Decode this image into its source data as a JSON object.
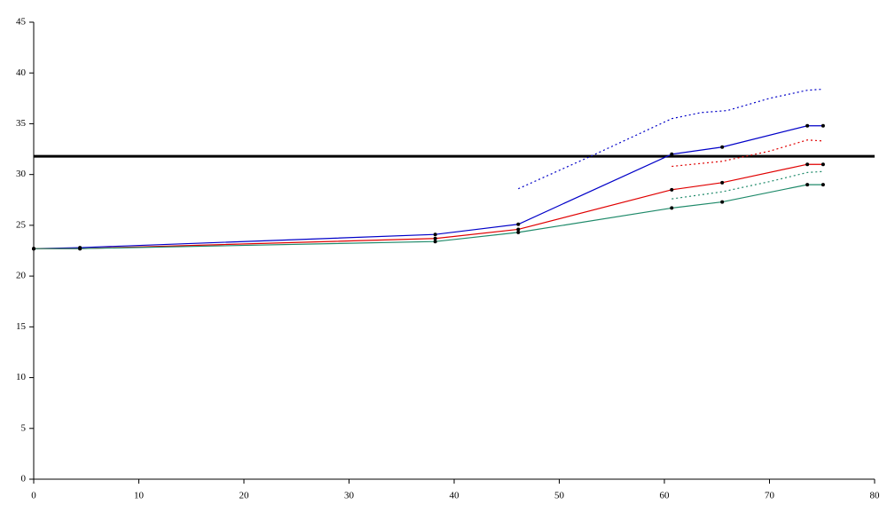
{
  "chart_data": {
    "type": "line",
    "xlim": [
      0,
      80
    ],
    "xticks": [
      0,
      10,
      20,
      30,
      40,
      50,
      60,
      70,
      80
    ],
    "ylim": [
      0,
      45
    ],
    "yticks": [
      0,
      5,
      10,
      15,
      20,
      25,
      30,
      35,
      40,
      45
    ],
    "grid": false,
    "reference_line": {
      "y": 31.8,
      "color": "#000000"
    },
    "series": [
      {
        "color": "#0000c8",
        "style": "solid",
        "markers": true,
        "x": [
          0,
          4.4,
          38.2,
          46.1,
          60.7,
          65.5,
          73.6,
          75.1
        ],
        "values": [
          22.7,
          22.8,
          24.1,
          25.1,
          32.0,
          32.7,
          34.8,
          34.8
        ]
      },
      {
        "color": "#e00000",
        "style": "solid",
        "markers": true,
        "x": [
          0,
          4.4,
          38.2,
          46.1,
          60.7,
          65.5,
          73.6,
          75.1
        ],
        "values": [
          22.7,
          22.7,
          23.7,
          24.6,
          28.5,
          29.2,
          31.0,
          31.0
        ]
      },
      {
        "color": "#1f8a6a",
        "style": "solid",
        "markers": true,
        "x": [
          0,
          4.4,
          38.2,
          46.1,
          60.7,
          65.5,
          73.6,
          75.1
        ],
        "values": [
          22.7,
          22.7,
          23.4,
          24.3,
          26.7,
          27.3,
          29.0,
          29.0
        ]
      },
      {
        "color": "#0000c8",
        "style": "dotted",
        "markers": false,
        "x": [
          46.1,
          53,
          60.7,
          63.5,
          66,
          70,
          73.6,
          75.1
        ],
        "values": [
          28.6,
          31.8,
          35.5,
          36.1,
          36.3,
          37.5,
          38.3,
          38.4
        ]
      },
      {
        "color": "#e00000",
        "style": "dotted",
        "markers": false,
        "x": [
          60.7,
          65.5,
          70,
          73.6,
          75.1
        ],
        "values": [
          30.8,
          31.3,
          32.3,
          33.4,
          33.3
        ]
      },
      {
        "color": "#1f8a6a",
        "style": "dotted",
        "markers": false,
        "x": [
          60.7,
          65.5,
          70,
          73.6,
          75.1
        ],
        "values": [
          27.6,
          28.3,
          29.3,
          30.2,
          30.3
        ]
      }
    ]
  }
}
